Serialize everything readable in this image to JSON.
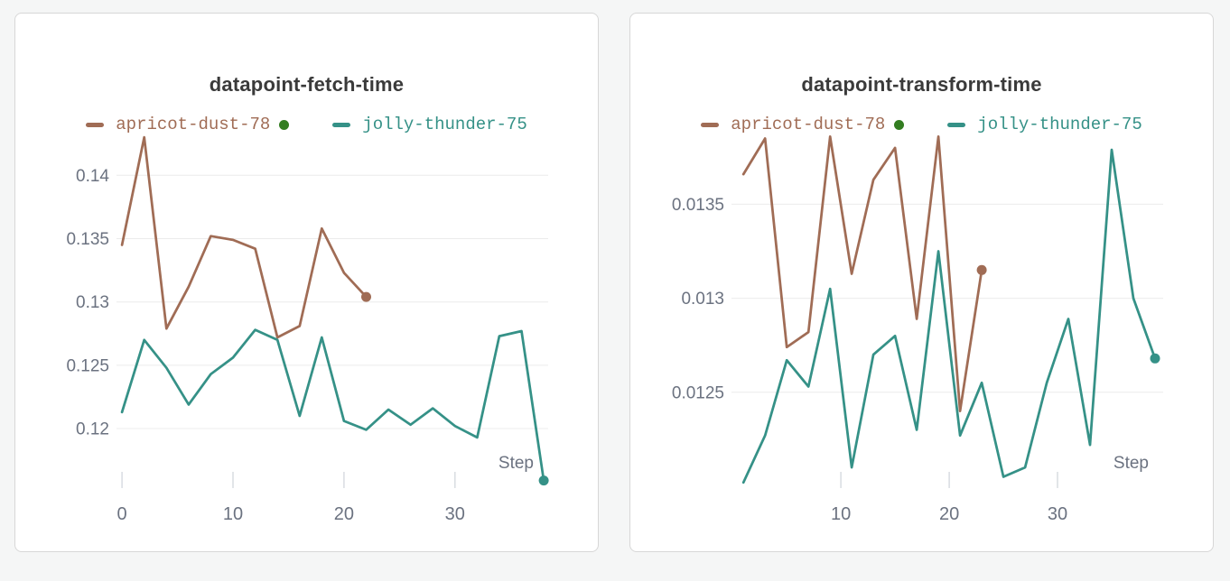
{
  "theme": {
    "page_background": "#f5f6f6",
    "card_background": "#ffffff",
    "card_border": "#d7d7d7",
    "grid_color": "#ececec",
    "tick_color": "#d9dce1",
    "axis_text_color": "#6b7280",
    "title_color": "#3a3a3a",
    "run_state_green": "#337d21"
  },
  "chart_data": [
    {
      "type": "line",
      "title": "datapoint-fetch-time",
      "xlabel": "Step",
      "grid": "horizontal",
      "legend_position": "top-center",
      "y_tick_labels": [
        "0.14",
        "0.135",
        "0.13",
        "0.125",
        "0.12"
      ],
      "y_tick_values": [
        0.14,
        0.135,
        0.13,
        0.125,
        0.12
      ],
      "x_tick_labels": [
        "0",
        "10",
        "20",
        "30"
      ],
      "x_tick_values": [
        0,
        10,
        20,
        30
      ],
      "ylim": [
        0.1153,
        0.1438
      ],
      "xlim": [
        -0.5,
        38.4
      ],
      "legend": [
        {
          "label": "apricot-dust-78",
          "status_dot_color": "#337d21"
        },
        {
          "label": "jolly-thunder-75",
          "status_dot_color": null
        }
      ],
      "series": [
        {
          "name": "apricot-dust-78",
          "color": "#a06c55",
          "end_marker": true,
          "x": [
            0,
            2,
            4,
            6,
            8,
            10,
            12,
            14,
            16,
            18,
            20,
            22
          ],
          "y": [
            0.1345,
            0.143,
            0.1279,
            0.1312,
            0.1352,
            0.1349,
            0.1342,
            0.1272,
            0.1281,
            0.1358,
            0.1323,
            0.1304
          ]
        },
        {
          "name": "jolly-thunder-75",
          "color": "#359187",
          "end_marker": true,
          "x": [
            0,
            2,
            4,
            6,
            8,
            10,
            12,
            14,
            16,
            18,
            20,
            22,
            24,
            26,
            28,
            30,
            32,
            34,
            36,
            38
          ],
          "y": [
            0.1213,
            0.127,
            0.1248,
            0.1219,
            0.1243,
            0.1256,
            0.1278,
            0.127,
            0.121,
            0.1272,
            0.1206,
            0.1199,
            0.1215,
            0.1203,
            0.1216,
            0.1202,
            0.1193,
            0.1273,
            0.1277,
            0.1159
          ]
        }
      ]
    },
    {
      "type": "line",
      "title": "datapoint-transform-time",
      "xlabel": "Step",
      "grid": "horizontal",
      "legend_position": "top-center",
      "y_tick_labels": [
        "0.0135",
        "0.013",
        "0.0125"
      ],
      "y_tick_values": [
        0.0135,
        0.013,
        0.0125
      ],
      "x_tick_labels": [
        "10",
        "20",
        "30"
      ],
      "x_tick_values": [
        10,
        20,
        30
      ],
      "ylim": [
        0.01199,
        0.01391
      ],
      "xlim": [
        -0.1,
        39.75
      ],
      "legend": [
        {
          "label": "apricot-dust-78",
          "status_dot_color": "#337d21"
        },
        {
          "label": "jolly-thunder-75",
          "status_dot_color": null
        }
      ],
      "series": [
        {
          "name": "apricot-dust-78",
          "color": "#a06c55",
          "end_marker": true,
          "x": [
            1,
            3,
            5,
            7,
            9,
            11,
            13,
            15,
            17,
            19,
            21,
            23
          ],
          "y": [
            0.01366,
            0.01385,
            0.01274,
            0.01282,
            0.01386,
            0.01313,
            0.01363,
            0.0138,
            0.01289,
            0.01386,
            0.0124,
            0.01315
          ]
        },
        {
          "name": "jolly-thunder-75",
          "color": "#359187",
          "end_marker": true,
          "x": [
            1,
            3,
            5,
            7,
            9,
            11,
            13,
            15,
            17,
            19,
            21,
            23,
            25,
            27,
            29,
            31,
            33,
            35,
            37,
            39
          ],
          "y": [
            0.01202,
            0.01227,
            0.01267,
            0.01253,
            0.01305,
            0.0121,
            0.0127,
            0.0128,
            0.0123,
            0.01325,
            0.01227,
            0.01255,
            0.01205,
            0.0121,
            0.01255,
            0.01289,
            0.01222,
            0.01379,
            0.013,
            0.01268
          ]
        }
      ]
    }
  ]
}
